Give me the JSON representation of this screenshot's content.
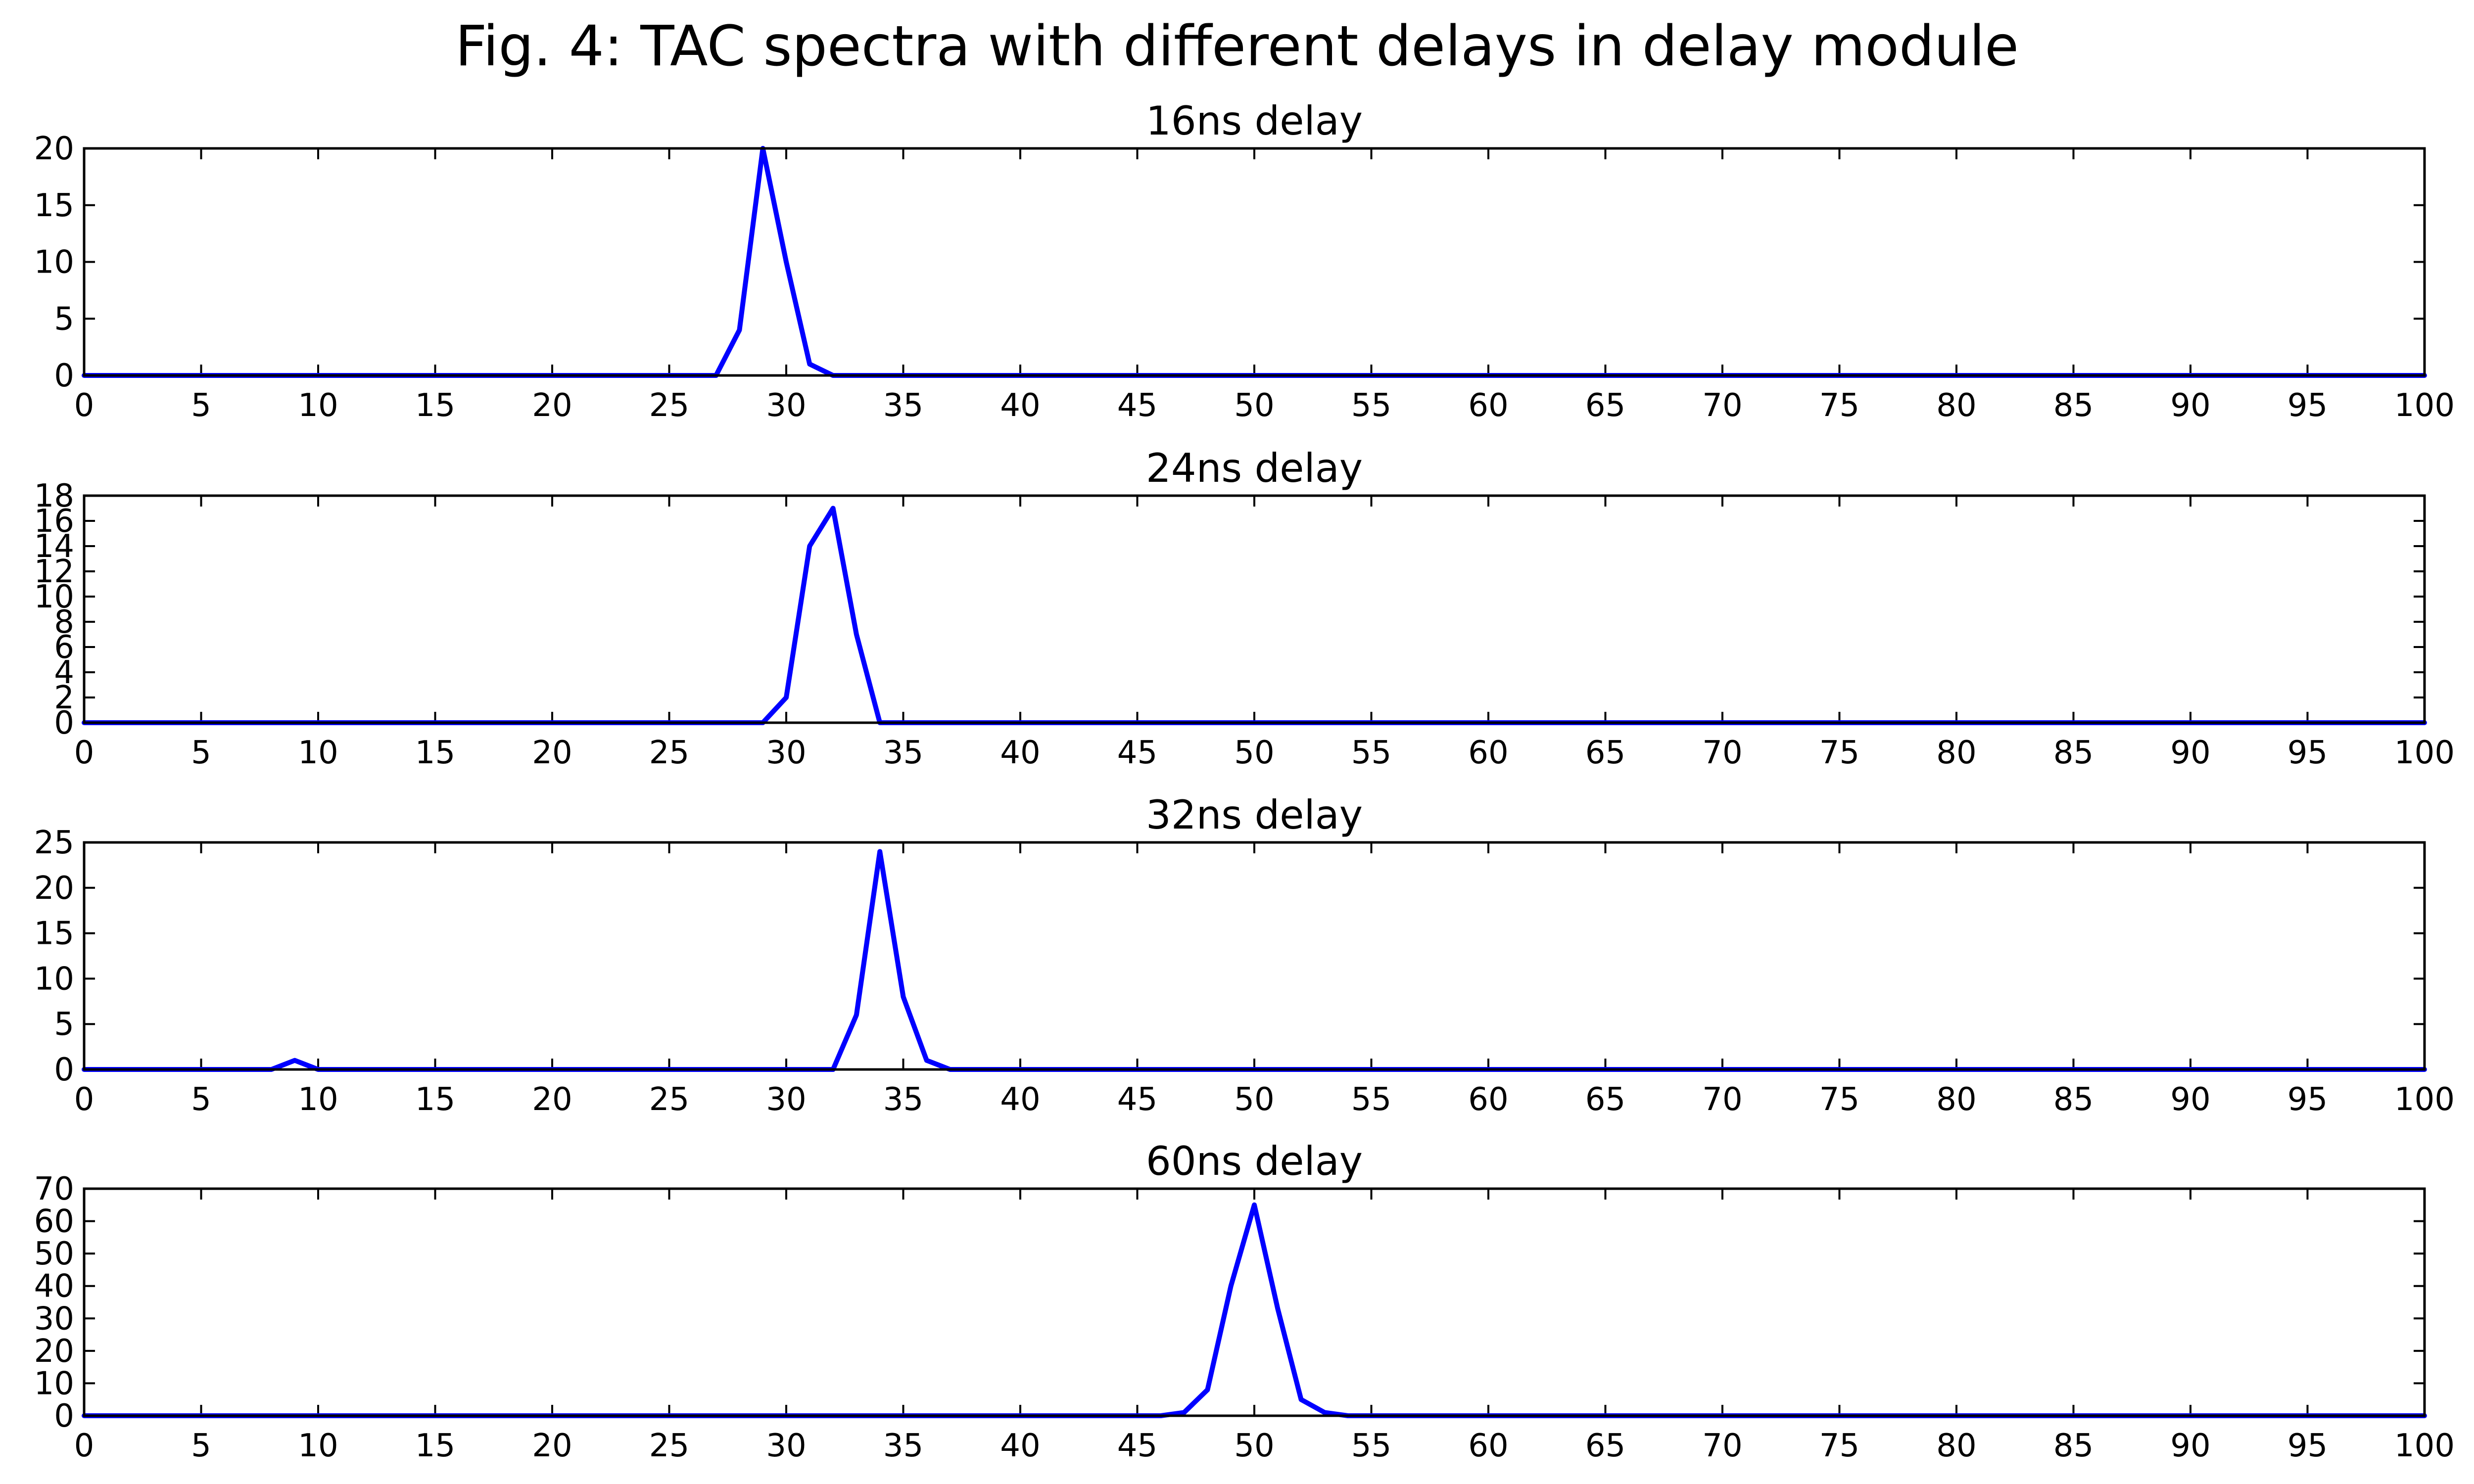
{
  "title": "Fig. 4: TAC spectra with different delays in delay module",
  "line_color": "#0000ff",
  "chart_data": [
    {
      "type": "line",
      "title": "16ns delay",
      "xlim": [
        0,
        100
      ],
      "ylim": [
        0,
        20
      ],
      "xticks": [
        0,
        5,
        10,
        15,
        20,
        25,
        30,
        35,
        40,
        45,
        50,
        55,
        60,
        65,
        70,
        75,
        80,
        85,
        90,
        95,
        100
      ],
      "yticks": [
        0,
        5,
        10,
        15,
        20
      ],
      "x": [
        0,
        27,
        28,
        29,
        30,
        31,
        32,
        100
      ],
      "y": [
        0,
        0,
        4,
        20,
        10,
        1,
        0,
        0
      ]
    },
    {
      "type": "line",
      "title": "24ns delay",
      "xlim": [
        0,
        100
      ],
      "ylim": [
        0,
        18
      ],
      "xticks": [
        0,
        5,
        10,
        15,
        20,
        25,
        30,
        35,
        40,
        45,
        50,
        55,
        60,
        65,
        70,
        75,
        80,
        85,
        90,
        95,
        100
      ],
      "yticks": [
        0,
        2,
        4,
        6,
        8,
        10,
        12,
        14,
        16,
        18
      ],
      "x": [
        0,
        29,
        30,
        31,
        32,
        33,
        34,
        100
      ],
      "y": [
        0,
        0,
        2,
        14,
        17,
        7,
        0,
        0
      ]
    },
    {
      "type": "line",
      "title": "32ns delay",
      "xlim": [
        0,
        100
      ],
      "ylim": [
        0,
        25
      ],
      "xticks": [
        0,
        5,
        10,
        15,
        20,
        25,
        30,
        35,
        40,
        45,
        50,
        55,
        60,
        65,
        70,
        75,
        80,
        85,
        90,
        95,
        100
      ],
      "yticks": [
        0,
        5,
        10,
        15,
        20,
        25
      ],
      "x": [
        0,
        8,
        9,
        10,
        32,
        33,
        34,
        35,
        36,
        37,
        100
      ],
      "y": [
        0,
        0,
        1,
        0,
        0,
        6,
        24,
        8,
        1,
        0,
        0
      ]
    },
    {
      "type": "line",
      "title": "60ns delay",
      "xlim": [
        0,
        100
      ],
      "ylim": [
        0,
        70
      ],
      "xticks": [
        0,
        5,
        10,
        15,
        20,
        25,
        30,
        35,
        40,
        45,
        50,
        55,
        60,
        65,
        70,
        75,
        80,
        85,
        90,
        95,
        100
      ],
      "yticks": [
        0,
        10,
        20,
        30,
        40,
        50,
        60,
        70
      ],
      "x": [
        0,
        46,
        47,
        48,
        49,
        50,
        51,
        52,
        53,
        54,
        100
      ],
      "y": [
        0,
        0,
        1,
        8,
        40,
        65,
        33,
        5,
        1,
        0,
        0
      ]
    }
  ]
}
